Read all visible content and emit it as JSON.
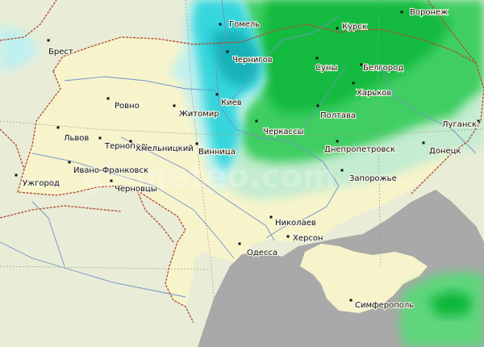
{
  "map": {
    "watermark": "gismeteo.com",
    "colors": {
      "land": "#e9ecd6",
      "ukraine": "#f7f4cc",
      "sea": "#a9a9a9",
      "rain_light": "#c4ecd0",
      "rain_medium": "#3fce62",
      "rain_heavy": "#10b83a",
      "snow_light": "#bff0f0",
      "snow_medium": "#36d6dc",
      "snow_heavy": "#16b2b8",
      "border": "#b14a32",
      "river": "#6f93c9"
    },
    "cities": [
      {
        "id": "voronezh",
        "name": "Воронеж"
      },
      {
        "id": "gomel",
        "name": "Гомель"
      },
      {
        "id": "kursk",
        "name": "Курск"
      },
      {
        "id": "brest",
        "name": "Брест"
      },
      {
        "id": "chernigov",
        "name": "Чернигов"
      },
      {
        "id": "sumy",
        "name": "Суны"
      },
      {
        "id": "belgorod",
        "name": "Белгород"
      },
      {
        "id": "kharkov",
        "name": "Харьков"
      },
      {
        "id": "kiev",
        "name": "Киев"
      },
      {
        "id": "rovno",
        "name": "Ровно"
      },
      {
        "id": "zhitomir",
        "name": "Житомир"
      },
      {
        "id": "poltava",
        "name": "Полтава"
      },
      {
        "id": "cherkassy",
        "name": "Черкассы"
      },
      {
        "id": "lugansk",
        "name": "Луганск"
      },
      {
        "id": "lvov",
        "name": "Львов"
      },
      {
        "id": "ternopol",
        "name": "Тернополь"
      },
      {
        "id": "khmelnitsky",
        "name": "Хмельницкий"
      },
      {
        "id": "vinnitsa",
        "name": "Винница"
      },
      {
        "id": "dnepropetrovsk",
        "name": "Днепропетровск"
      },
      {
        "id": "donetsk",
        "name": "Донецк"
      },
      {
        "id": "ivano_frankovsk",
        "name": "Ивано-Франковск"
      },
      {
        "id": "uzhgorod",
        "name": "Ужгород"
      },
      {
        "id": "chernovtsy",
        "name": "Черновцы"
      },
      {
        "id": "zaporozhye",
        "name": "Запорожье"
      },
      {
        "id": "nikolaev",
        "name": "Николаев"
      },
      {
        "id": "kherson",
        "name": "Херсон"
      },
      {
        "id": "odessa",
        "name": "Одесса"
      },
      {
        "id": "simferopol",
        "name": "Симферополь"
      }
    ]
  }
}
